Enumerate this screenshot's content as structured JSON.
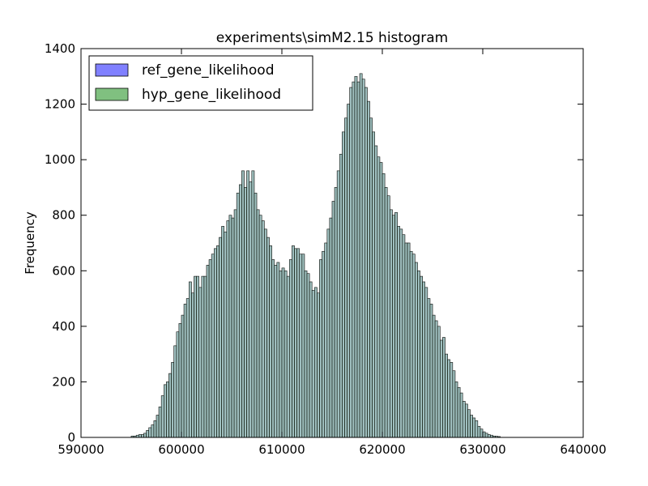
{
  "chart_data": {
    "type": "bar",
    "title": "experiments\\simM2.15 histogram",
    "xlabel": "",
    "ylabel": "Frequency",
    "xlim": [
      590000,
      640000
    ],
    "ylim": [
      0,
      1400
    ],
    "x_ticks": [
      "590000",
      "600000",
      "610000",
      "620000",
      "630000",
      "640000"
    ],
    "y_ticks": [
      "0",
      "200",
      "400",
      "600",
      "800",
      "1000",
      "1200",
      "1400"
    ],
    "grid": false,
    "legend": "top-left",
    "bin_start": 595000,
    "bin_width": 250,
    "series": [
      {
        "name": "ref_gene_likelihood",
        "color": "#8080ff",
        "values": [
          5,
          5,
          8,
          10,
          10,
          15,
          25,
          35,
          45,
          60,
          80,
          110,
          150,
          190,
          200,
          230,
          270,
          330,
          380,
          410,
          440,
          480,
          500,
          560,
          520,
          580,
          580,
          540,
          580,
          580,
          620,
          640,
          660,
          680,
          690,
          720,
          760,
          740,
          780,
          800,
          790,
          820,
          880,
          910,
          960,
          900,
          960,
          920,
          960,
          880,
          820,
          800,
          780,
          750,
          720,
          690,
          640,
          620,
          630,
          600,
          610,
          600,
          580,
          640,
          690,
          680,
          680,
          660,
          660,
          600,
          590,
          560,
          530,
          540,
          520,
          640,
          670,
          700,
          750,
          790,
          850,
          900,
          960,
          1020,
          1100,
          1150,
          1200,
          1260,
          1280,
          1300,
          1280,
          1310,
          1290,
          1260,
          1210,
          1150,
          1100,
          1050,
          1010,
          990,
          950,
          900,
          870,
          820,
          800,
          810,
          760,
          750,
          730,
          700,
          700,
          670,
          660,
          630,
          600,
          580,
          560,
          540,
          500,
          480,
          440,
          420,
          400,
          350,
          360,
          300,
          280,
          270,
          240,
          200,
          180,
          160,
          130,
          120,
          100,
          80,
          70,
          60,
          40,
          30,
          20,
          15,
          10,
          8,
          5,
          4,
          3
        ]
      },
      {
        "name": "hyp_gene_likelihood",
        "color": "#80c080",
        "values": [
          5,
          5,
          8,
          10,
          10,
          15,
          25,
          35,
          45,
          60,
          80,
          110,
          150,
          190,
          200,
          230,
          270,
          330,
          380,
          410,
          440,
          480,
          500,
          560,
          520,
          580,
          580,
          540,
          580,
          580,
          620,
          640,
          660,
          680,
          690,
          720,
          760,
          740,
          780,
          800,
          790,
          820,
          880,
          910,
          960,
          900,
          960,
          920,
          960,
          880,
          820,
          800,
          780,
          750,
          720,
          690,
          640,
          620,
          630,
          600,
          610,
          600,
          580,
          640,
          690,
          680,
          680,
          660,
          660,
          600,
          590,
          560,
          530,
          540,
          520,
          640,
          670,
          700,
          750,
          790,
          850,
          900,
          960,
          1020,
          1100,
          1150,
          1200,
          1260,
          1280,
          1300,
          1280,
          1310,
          1290,
          1260,
          1210,
          1150,
          1100,
          1050,
          1010,
          990,
          950,
          900,
          870,
          820,
          800,
          810,
          760,
          750,
          730,
          700,
          700,
          670,
          660,
          630,
          600,
          580,
          560,
          540,
          500,
          480,
          440,
          420,
          400,
          350,
          360,
          300,
          280,
          270,
          240,
          200,
          180,
          160,
          130,
          120,
          100,
          80,
          70,
          60,
          40,
          30,
          20,
          15,
          10,
          8,
          5,
          4,
          3
        ]
      }
    ]
  }
}
